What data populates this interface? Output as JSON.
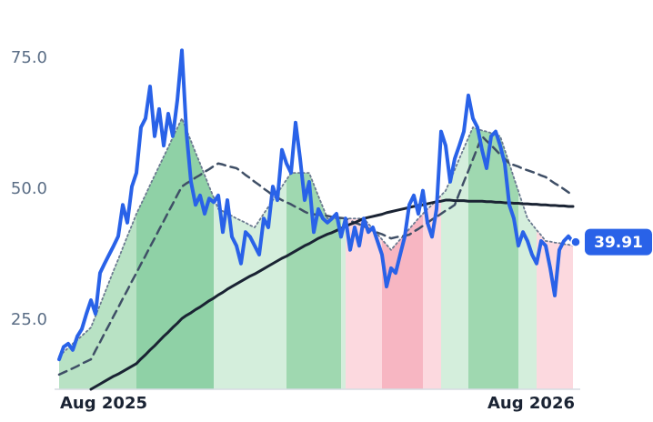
{
  "chart_data": {
    "type": "line",
    "categories": [
      "Aug 2025",
      null,
      null,
      null,
      null,
      null,
      null,
      null,
      null,
      null,
      null,
      null,
      null,
      null,
      null,
      null,
      null,
      null,
      null,
      null,
      null,
      null,
      null,
      null,
      null,
      null,
      null,
      null,
      null,
      null,
      null,
      null,
      null,
      null,
      null,
      null,
      null,
      null,
      null,
      null,
      null,
      null,
      null,
      null,
      null,
      null,
      null,
      null,
      null,
      null,
      null,
      null,
      null,
      null,
      null,
      null,
      null,
      null,
      null,
      null,
      null,
      null,
      null,
      null,
      null,
      null,
      null,
      null,
      null,
      null,
      null,
      null,
      null,
      null,
      null,
      null,
      null,
      null,
      null,
      null,
      null,
      null,
      null,
      null,
      null,
      null,
      null,
      null,
      null,
      null,
      null,
      null,
      null,
      null,
      null,
      null,
      null,
      null,
      null,
      null,
      null,
      null,
      null,
      null,
      null,
      null,
      null,
      null,
      null,
      null,
      null,
      null,
      null,
      "Aug 2026"
    ],
    "series": [
      {
        "color": "#2962e8",
        "line_style": "solid",
        "values": [
          17.5,
          19.9,
          20.5,
          19.3,
          21.9,
          23.3,
          26.2,
          28.8,
          26.2,
          34.0,
          35.8,
          37.5,
          39.2,
          41.0,
          47.0,
          43.6,
          50.5,
          53.1,
          61.8,
          63.5,
          69.6,
          60.1,
          65.3,
          58.3,
          64.4,
          60.1,
          67.0,
          76.5,
          60.8,
          51.4,
          47.0,
          48.8,
          45.3,
          48.2,
          47.5,
          48.8,
          41.8,
          47.9,
          40.9,
          39.2,
          35.8,
          41.8,
          40.9,
          39.2,
          37.5,
          44.4,
          42.7,
          50.5,
          47.9,
          57.5,
          54.9,
          53.1,
          62.7,
          55.8,
          47.9,
          51.4,
          41.8,
          46.2,
          44.4,
          43.6,
          44.4,
          45.3,
          40.9,
          44.4,
          38.4,
          42.7,
          39.2,
          44.4,
          41.8,
          42.7,
          40.1,
          37.5,
          31.4,
          34.9,
          34.0,
          37.5,
          40.9,
          47.0,
          48.8,
          45.3,
          49.7,
          43.6,
          40.9,
          46.2,
          61.0,
          58.3,
          51.4,
          55.8,
          58.3,
          61.0,
          67.9,
          63.5,
          61.8,
          57.5,
          54.0,
          60.1,
          61.0,
          58.3,
          54.9,
          47.0,
          44.4,
          39.2,
          41.8,
          40.1,
          37.5,
          35.8,
          40.1,
          39.2,
          34.9,
          29.7,
          38.4,
          40.1,
          41.0,
          39.91
        ]
      },
      {
        "color": "#1a2333",
        "line_style": "solid",
        "values": [
          null,
          null,
          null,
          null,
          null,
          null,
          null,
          11.8,
          12.3,
          12.8,
          13.3,
          13.8,
          14.3,
          14.7,
          15.2,
          15.7,
          16.2,
          16.7,
          17.6,
          18.4,
          19.3,
          20.1,
          21.0,
          21.9,
          22.7,
          23.6,
          24.4,
          25.3,
          25.9,
          26.4,
          27.0,
          27.5,
          28.1,
          28.7,
          29.2,
          29.8,
          30.3,
          30.9,
          31.4,
          31.9,
          32.4,
          32.9,
          33.4,
          33.8,
          34.3,
          34.8,
          35.3,
          35.8,
          36.3,
          36.8,
          37.2,
          37.7,
          38.2,
          38.7,
          39.2,
          39.6,
          40.1,
          40.6,
          41.0,
          41.4,
          41.7,
          42.1,
          42.5,
          42.9,
          43.3,
          43.6,
          44.0,
          44.4,
          44.6,
          44.8,
          45.0,
          45.2,
          45.5,
          45.7,
          45.9,
          46.1,
          46.3,
          46.5,
          46.7,
          46.9,
          47.0,
          47.2,
          47.4,
          47.6,
          47.7,
          47.9,
          47.9,
          47.8,
          47.8,
          47.8,
          47.7,
          47.7,
          47.7,
          47.7,
          47.6,
          47.6,
          47.5,
          47.5,
          47.4,
          47.4,
          47.3,
          47.3,
          47.2,
          47.2,
          47.1,
          47.1,
          47.0,
          47.0,
          46.9,
          46.9,
          46.8,
          46.8,
          46.7,
          46.7
        ]
      },
      {
        "color": "#3f4f66",
        "line_style": "dashed",
        "values": [
          14.6,
          15.0,
          15.4,
          15.8,
          16.2,
          16.7,
          17.1,
          17.5,
          19.2,
          20.8,
          22.5,
          24.1,
          25.8,
          27.4,
          29.1,
          30.7,
          32.4,
          34.0,
          35.7,
          37.3,
          39.0,
          40.6,
          42.3,
          43.9,
          45.6,
          47.2,
          48.9,
          50.5,
          51.1,
          51.6,
          52.2,
          52.7,
          53.3,
          53.8,
          54.4,
          54.9,
          54.7,
          54.4,
          54.2,
          54.0,
          53.4,
          52.7,
          52.1,
          51.4,
          50.8,
          50.1,
          49.5,
          48.8,
          48.4,
          47.9,
          47.5,
          47.1,
          46.6,
          46.2,
          45.7,
          45.3,
          45.2,
          45.1,
          45.0,
          44.9,
          44.7,
          44.6,
          44.5,
          44.4,
          44.0,
          43.6,
          43.3,
          42.9,
          42.5,
          42.1,
          41.7,
          41.4,
          41.0,
          40.6,
          40.8,
          41.0,
          41.1,
          41.3,
          41.9,
          42.4,
          43.0,
          43.6,
          44.2,
          44.7,
          45.3,
          45.9,
          46.4,
          47.0,
          49.2,
          51.4,
          53.5,
          55.7,
          57.9,
          60.1,
          59.2,
          58.4,
          57.5,
          56.6,
          55.8,
          54.9,
          54.6,
          54.3,
          53.9,
          53.6,
          53.3,
          53.0,
          52.6,
          52.3,
          51.7,
          51.1,
          50.6,
          50.0,
          49.4,
          48.8
        ]
      },
      {
        "color": "#6b7a90",
        "line_style": "dotted",
        "values": [
          18.1,
          18.9,
          19.7,
          20.5,
          21.2,
          22.0,
          22.8,
          23.6,
          25.8,
          27.9,
          30.1,
          32.3,
          34.5,
          36.6,
          38.8,
          41.0,
          43.1,
          45.3,
          47.1,
          48.9,
          50.8,
          52.6,
          54.4,
          56.2,
          58.0,
          59.9,
          61.7,
          63.5,
          61.3,
          59.2,
          57.0,
          54.9,
          52.7,
          50.5,
          48.4,
          46.2,
          45.8,
          45.3,
          44.9,
          44.4,
          44.0,
          43.6,
          43.1,
          42.7,
          44.0,
          45.3,
          46.6,
          47.9,
          49.2,
          50.5,
          51.8,
          53.1,
          53.1,
          53.1,
          53.1,
          53.1,
          50.9,
          48.7,
          46.6,
          44.4,
          44.4,
          44.4,
          44.4,
          44.4,
          44.4,
          44.4,
          44.4,
          44.4,
          43.4,
          42.4,
          41.4,
          40.4,
          39.4,
          38.4,
          39.4,
          40.4,
          41.4,
          42.4,
          43.4,
          44.4,
          45.3,
          46.2,
          47.0,
          47.9,
          48.8,
          49.7,
          51.7,
          53.7,
          55.8,
          57.8,
          59.8,
          61.8,
          61.5,
          61.2,
          61.0,
          60.7,
          60.4,
          60.1,
          57.5,
          54.9,
          52.2,
          49.6,
          47.0,
          44.4,
          43.3,
          42.2,
          41.2,
          40.1,
          40.0,
          39.8,
          39.7,
          39.5,
          39.4,
          39.2
        ]
      }
    ],
    "bands": [
      {
        "start": 0,
        "end": 17,
        "color": "#b8e2c4"
      },
      {
        "start": 17,
        "end": 34,
        "color": "#8fd1a6"
      },
      {
        "start": 34,
        "end": 50,
        "color": "#d4eedc"
      },
      {
        "start": 50,
        "end": 62,
        "color": "#9fd8b0"
      },
      {
        "start": 62,
        "end": 63,
        "color": "#d4eedc"
      },
      {
        "start": 63,
        "end": 71,
        "color": "#fcd9df"
      },
      {
        "start": 71,
        "end": 80,
        "color": "#f7b6c2"
      },
      {
        "start": 80,
        "end": 84,
        "color": "#fcd9df"
      },
      {
        "start": 84,
        "end": 90,
        "color": "#d4eedc"
      },
      {
        "start": 90,
        "end": 101,
        "color": "#9fd8b0"
      },
      {
        "start": 101,
        "end": 105,
        "color": "#d4eedc"
      },
      {
        "start": 105,
        "end": 113,
        "color": "#fcd9df"
      }
    ],
    "ylim": [
      11.8,
      81
    ],
    "yticks": [
      {
        "value": 25,
        "label": "25.0"
      },
      {
        "value": 50,
        "label": "50.0"
      },
      {
        "value": 75,
        "label": "75.0"
      }
    ],
    "grid": false
  }
}
